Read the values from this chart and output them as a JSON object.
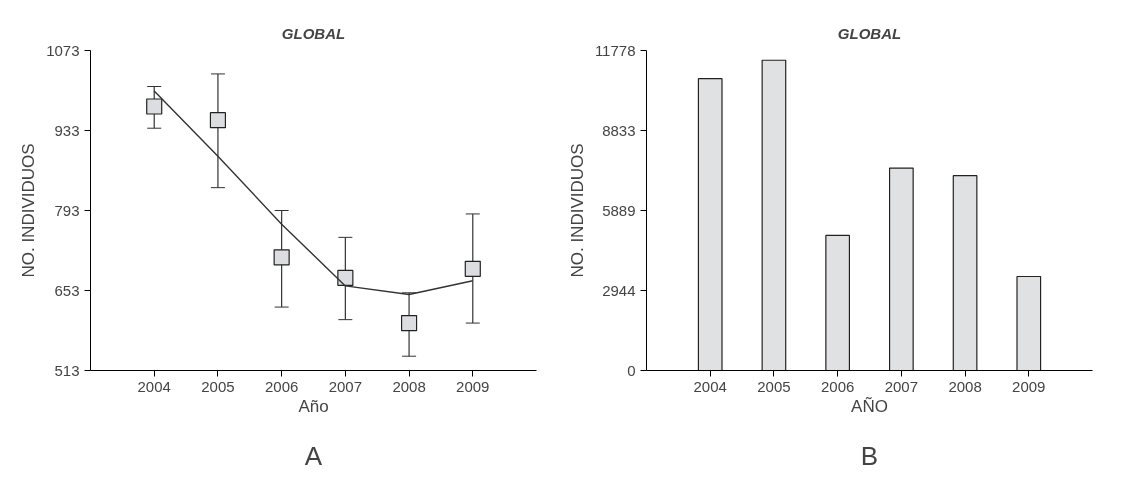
{
  "chart_data": [
    {
      "type": "scatter",
      "title": "GLOBAL",
      "xlabel": "Año",
      "ylabel": "NO. INDIVIDUOS",
      "x": [
        2004,
        2005,
        2006,
        2007,
        2008,
        2009
      ],
      "xlim": [
        2003,
        2010
      ],
      "xticks": [
        2004,
        2005,
        2006,
        2007,
        2008,
        2009
      ],
      "ylim": [
        513,
        1073
      ],
      "yticks": [
        513,
        653,
        793,
        933,
        1073
      ],
      "grid": false,
      "annotations": [
        "A"
      ],
      "series": [
        {
          "type": "scatter",
          "marker": "square",
          "color": "#dcdde0",
          "values": [
            975,
            951,
            711,
            675,
            596,
            691
          ],
          "errors": [
            [
              937,
              1010
            ],
            [
              833,
              1032
            ],
            [
              624,
              793
            ],
            [
              602,
              746
            ],
            [
              538,
              649
            ],
            [
              596,
              787
            ]
          ]
        },
        {
          "type": "line",
          "color": "#333333",
          "values": [
            1002,
            888,
            769,
            661,
            646,
            670
          ],
          "marker": "none",
          "line_style": "solid"
        }
      ]
    },
    {
      "type": "bar",
      "title": "GLOBAL",
      "xlabel": "AÑO",
      "ylabel": "NO. INDIVIDUOS",
      "x": [
        2004,
        2005,
        2006,
        2007,
        2008,
        2009
      ],
      "xlim": [
        2003,
        2010
      ],
      "xticks": [
        2004,
        2005,
        2006,
        2007,
        2008,
        2009
      ],
      "ylim": [
        0,
        11778
      ],
      "yticks": [
        0,
        2944,
        5889,
        8833,
        11778
      ],
      "grid": false,
      "annotations": [
        "B"
      ],
      "series": [
        {
          "color": "#e0e1e3",
          "values": [
            10740,
            11420,
            4970,
            7450,
            7170,
            3460
          ]
        }
      ]
    }
  ]
}
